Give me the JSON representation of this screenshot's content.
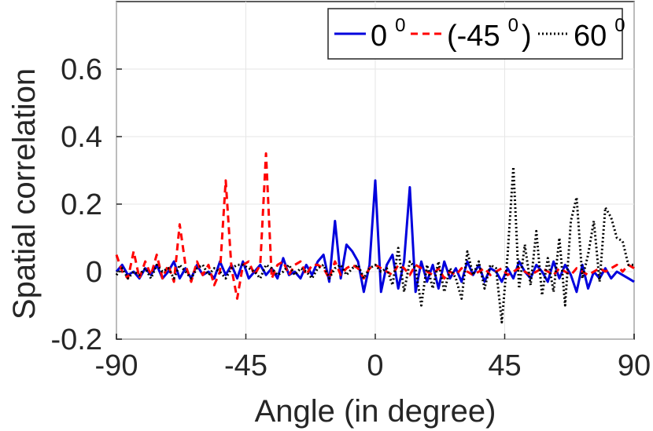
{
  "chart_data": {
    "type": "line",
    "title": "",
    "xlabel": "Angle (in degree)",
    "ylabel": "Spatial correlation",
    "xlim": [
      -90,
      90
    ],
    "ylim": [
      -0.2,
      0.8
    ],
    "xticks": [
      -90,
      -45,
      0,
      45,
      90
    ],
    "xtick_labels": [
      "-90",
      "-45",
      "0",
      "45",
      "90"
    ],
    "yticks": [
      -0.2,
      0,
      0.2,
      0.4,
      0.6
    ],
    "ytick_labels": [
      "-0.2",
      "0",
      "0.2",
      "0.4",
      "0.6"
    ],
    "grid": true,
    "legend_position": "top-right",
    "legend_orientation": "horizontal",
    "x": [
      -90,
      -88,
      -86,
      -84,
      -82,
      -80,
      -78,
      -76,
      -74,
      -72,
      -70,
      -68,
      -66,
      -64,
      -62,
      -60,
      -58,
      -56,
      -54,
      -52,
      -50,
      -48,
      -46,
      -44,
      -42,
      -40,
      -38,
      -36,
      -34,
      -32,
      -30,
      -28,
      -26,
      -24,
      -22,
      -20,
      -18,
      -16,
      -14,
      -12,
      -10,
      -8,
      -6,
      -4,
      -2,
      0,
      2,
      4,
      6,
      8,
      10,
      12,
      14,
      16,
      18,
      20,
      22,
      24,
      26,
      28,
      30,
      32,
      34,
      36,
      38,
      40,
      42,
      44,
      46,
      48,
      50,
      52,
      54,
      56,
      58,
      60,
      62,
      64,
      66,
      68,
      70,
      72,
      74,
      76,
      78,
      80,
      82,
      84,
      86,
      88,
      90
    ],
    "series": [
      {
        "name": "0",
        "name_sup": "0",
        "color": "#0000dd",
        "dash": "solid",
        "values": [
          0,
          0.02,
          -0.01,
          0,
          -0.02,
          0.01,
          -0.01,
          0.02,
          -0.02,
          0,
          0.03,
          -0.02,
          0.01,
          -0.02,
          0.02,
          -0.01,
          0,
          -0.02,
          0.03,
          -0.01,
          0.02,
          -0.02,
          0.03,
          -0.02,
          0,
          0.02,
          -0.01,
          0.01,
          -0.02,
          0.04,
          -0.01,
          0,
          -0.02,
          0.02,
          -0.01,
          0.03,
          0.05,
          -0.03,
          0.15,
          -0.02,
          0.08,
          0.06,
          0.03,
          -0.06,
          0.02,
          0.27,
          -0.06,
          0.02,
          0.05,
          -0.05,
          0.03,
          0.25,
          -0.06,
          0.03,
          -0.03,
          0.02,
          -0.05,
          0.03,
          -0.02,
          0.01,
          -0.03,
          0.03,
          -0.01,
          0.02,
          -0.03,
          0.01,
          0,
          -0.03,
          0.01,
          -0.02,
          0.03,
          0,
          -0.02,
          0.02,
          0,
          -0.03,
          0.03,
          -0.02,
          0.02,
          -0.01,
          -0.06,
          0.02,
          -0.05,
          0,
          -0.02,
          0.01,
          -0.02,
          0,
          -0.01,
          -0.02,
          -0.03
        ]
      },
      {
        "name": "(-45",
        "name_sup": "0",
        "name_suffix": ")",
        "color": "#ff0000",
        "dash": "dashed",
        "values": [
          0.05,
          0,
          -0.02,
          0.06,
          -0.02,
          0.03,
          -0.01,
          0.05,
          -0.02,
          0.02,
          -0.03,
          0.14,
          0.02,
          -0.03,
          0.03,
          -0.01,
          0.02,
          -0.04,
          0,
          0.27,
          0.01,
          -0.08,
          0.02,
          0.03,
          -0.01,
          0.02,
          0.35,
          -0.02,
          0.02,
          0.03,
          -0.01,
          0.02,
          0.03,
          -0.01,
          0.02,
          0.02,
          0.01,
          -0.02,
          0.03,
          -0.01,
          0.01,
          0.02,
          0.01,
          -0.02,
          0.01,
          0.02,
          0.01,
          0,
          -0.01,
          0.02,
          0.01,
          -0.01,
          0.02,
          0.01,
          0,
          -0.01,
          0.01,
          -0.02,
          0,
          -0.01,
          0.01,
          0,
          -0.01,
          0,
          0.01,
          -0.01,
          0,
          0.01,
          -0.01,
          0,
          0.01,
          0,
          -0.01,
          0,
          0.01,
          0,
          -0.01,
          0.01,
          0,
          -0.01,
          0.01,
          0,
          -0.01,
          0,
          0.01,
          0,
          0.01,
          0.02,
          0,
          0.02,
          0.01
        ]
      },
      {
        "name": "60",
        "name_sup": "0",
        "color": "#000000",
        "dash": "dotted",
        "values": [
          -0.01,
          0.01,
          -0.02,
          0,
          -0.01,
          0.01,
          -0.02,
          0.02,
          0,
          0.01,
          -0.02,
          0.02,
          0,
          -0.02,
          0.01,
          0.02,
          -0.01,
          0.01,
          0,
          -0.02,
          0.01,
          0.02,
          0.02,
          0.01,
          0,
          -0.02,
          0.02,
          0.01,
          -0.01,
          0,
          0.02,
          -0.01,
          0.01,
          0,
          -0.02,
          0.01,
          0.02,
          -0.02,
          0.01,
          0.02,
          -0.01,
          0.01,
          0.02,
          -0.02,
          0.01,
          0.02,
          0,
          0.01,
          -0.04,
          0.07,
          -0.06,
          0.03,
          0.01,
          -0.1,
          0.02,
          -0.05,
          0.03,
          -0.06,
          0.01,
          -0.02,
          -0.08,
          0.06,
          -0.01,
          0.03,
          -0.05,
          0.02,
          0.01,
          -0.15,
          0.05,
          0.31,
          -0.05,
          0.08,
          -0.04,
          0.12,
          -0.07,
          0.04,
          -0.06,
          0.1,
          -0.1,
          0.15,
          0.22,
          -0.02,
          0.05,
          0.15,
          -0.03,
          0.19,
          0.16,
          0.1,
          0.09,
          0.02,
          0.02
        ]
      }
    ]
  }
}
